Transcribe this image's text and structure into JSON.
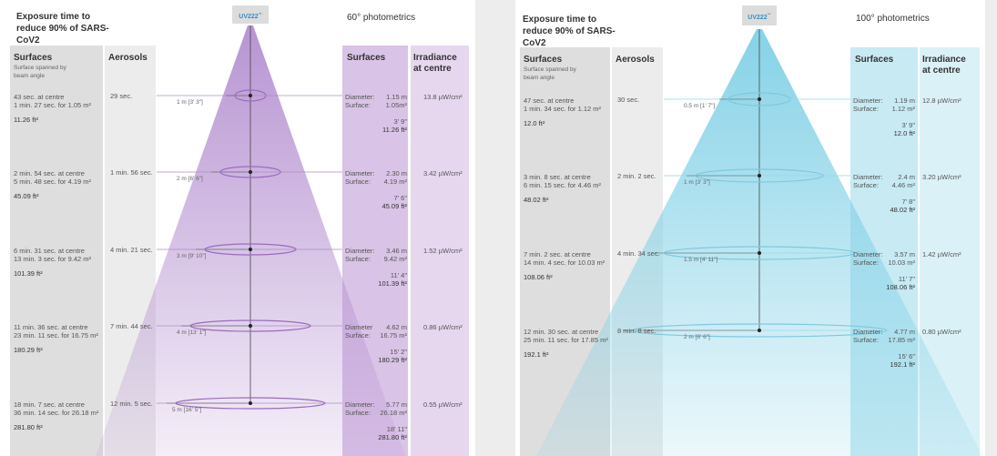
{
  "panels": [
    {
      "title": "Exposure time to reduce 90% of SARS-CoV2",
      "lamp_label": "UV222",
      "lamp_sup": "™",
      "photometrics": "60° photometrics",
      "surfaces_header": "Surfaces",
      "surfaces_sub": "Surface spanned by beam angle",
      "aerosols_header": "Aerosols",
      "right_surfaces_header": "Surfaces",
      "irradiance_header": "Irradiance at centre",
      "color": "#b48fd0",
      "rows": [
        {
          "time_centre": "43 sec. at centre",
          "time_area": "1 min. 27 sec. for 1.05 m²",
          "area_ft": "11.26 ft²",
          "aerosol": "29 sec.",
          "distance": "1 m [3' 3\"]",
          "diameter_label": "Diameter:",
          "diameter": "1.15 m",
          "surface_label": "Surface:",
          "surface": "1.05m²",
          "ft_in": "3' 9\"",
          "ft2": "11.26 ft²",
          "irradiance": "13.8 µW/cm²"
        },
        {
          "time_centre": "2 min. 54 sec. at centre",
          "time_area": "5 min. 48 sec. for 4.19 m²",
          "area_ft": "45.09 ft²",
          "aerosol": "1 min. 56 sec.",
          "distance": "2 m [6' 6\"]",
          "diameter_label": "Diameter:",
          "diameter": "2.30 m",
          "surface_label": "Surface:",
          "surface": "4.19 m²",
          "ft_in": "7' 6\"",
          "ft2": "45.09 ft²",
          "irradiance": "3.42 µW/cm²"
        },
        {
          "time_centre": "6 min. 31 sec. at centre",
          "time_area": "13 min. 3 sec. for 9.42 m²",
          "area_ft": "101.39 ft²",
          "aerosol": "4 min. 21 sec.",
          "distance": "3 m [9' 10\"]",
          "diameter_label": "Diameter:",
          "diameter": "3.46 m",
          "surface_label": "Surface:",
          "surface": "9.42 m²",
          "ft_in": "11' 4\"",
          "ft2": "101.39 ft²",
          "irradiance": "1.52 µW/cm²"
        },
        {
          "time_centre": "11 min. 36 sec. at centre",
          "time_area": "23 min. 11 sec. for 16.75 m²",
          "area_ft": "180.29 ft²",
          "aerosol": "7 min. 44 sec.",
          "distance": "4 m [13' 1\"]",
          "diameter_label": "Diameter",
          "diameter": "4.62 m",
          "surface_label": "Surface:",
          "surface": "16.75 m²",
          "ft_in": "15' 2\"",
          "ft2": "180.29 ft²",
          "irradiance": "0.86 µW/cm²"
        },
        {
          "time_centre": "18 min. 7 sec. at centre",
          "time_area": "36 min. 14 sec. for 26.18 m²",
          "area_ft": "281.80 ft²",
          "aerosol": "12 min. 5 sec.",
          "distance": "5 m [16' 5\"]",
          "diameter_label": "Diameter:",
          "diameter": "5.77 m",
          "surface_label": "Surface:",
          "surface": "26.18 m²",
          "ft_in": "18' 11\"",
          "ft2": "281.80 ft²",
          "irradiance": "0.55 µW/cm²"
        }
      ]
    },
    {
      "title": "Exposure time to reduce 90% of SARS-CoV2",
      "lamp_label": "UV222",
      "lamp_sup": "™",
      "photometrics": "100° photometrics",
      "surfaces_header": "Surfaces",
      "surfaces_sub": "Surface spanned by beam angle",
      "aerosols_header": "Aerosols",
      "right_surfaces_header": "Surfaces",
      "irradiance_header": "Irradiance at centre",
      "color": "#7fd0e6",
      "rows": [
        {
          "time_centre": "47 sec. at centre",
          "time_area": "1 min. 34 sec. for 1.12 m²",
          "area_ft": "12.0 ft²",
          "aerosol": "30 sec.",
          "distance": "0.5 m [1' 7\"]",
          "diameter_label": "Diameter:",
          "diameter": "1.19 m",
          "surface_label": "Surface:",
          "surface": "1.12 m²",
          "ft_in": "3' 9\"",
          "ft2": "12.0 ft²",
          "irradiance": "12.8 µW/cm²"
        },
        {
          "time_centre": "3 min. 8 sec. at centre",
          "time_area": "6 min. 15 sec. for 4.46 m²",
          "area_ft": "48.02 ft²",
          "aerosol": "2 min. 2 sec.",
          "distance": "1 m [3' 3\"]",
          "diameter_label": "Diameter:",
          "diameter": "2.4 m",
          "surface_label": "Surface:",
          "surface": "4.46 m²",
          "ft_in": "7' 8\"",
          "ft2": "48.02 ft²",
          "irradiance": "3.20 µW/cm²"
        },
        {
          "time_centre": "7 min. 2 sec. at centre",
          "time_area": "14 min. 4 sec. for 10.03 m²",
          "area_ft": "108.06 ft²",
          "aerosol": "4 min. 34 sec.",
          "distance": "1.5 m [4' 11\"]",
          "diameter_label": "Diameter:",
          "diameter": "3.57 m",
          "surface_label": "Surface:",
          "surface": "10.03 m²",
          "ft_in": "11' 7\"",
          "ft2": "108.06 ft²",
          "irradiance": "1.42 µW/cm²"
        },
        {
          "time_centre": "12 min. 30 sec. at centre",
          "time_area": "25 min. 11 sec. for 17.85 m²",
          "area_ft": "192.1 ft²",
          "aerosol": "8 min. 8 sec.",
          "distance": "2 m [6' 6\"]",
          "diameter_label": "Diameter:",
          "diameter": "4.77 m",
          "surface_label": "Surface:",
          "surface": "17.85 m²",
          "ft_in": "15' 6\"",
          "ft2": "192.1 ft²",
          "irradiance": "0.80 µW/cm²"
        }
      ]
    }
  ]
}
